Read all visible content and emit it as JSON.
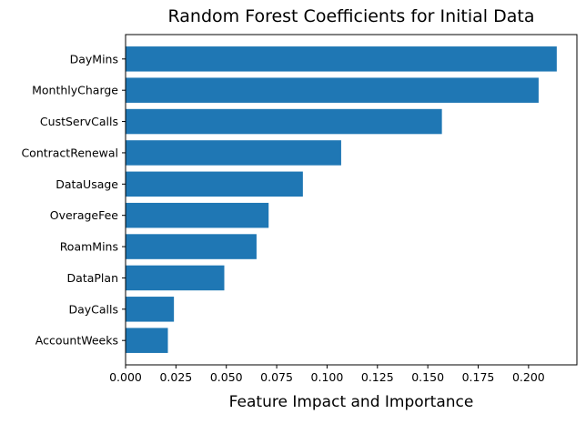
{
  "chart_data": {
    "type": "bar",
    "orientation": "horizontal",
    "title": "Random Forest Coefficients for Initial Data",
    "xlabel": "Feature Impact and Importance",
    "ylabel": "",
    "categories": [
      "DayMins",
      "MonthlyCharge",
      "CustServCalls",
      "ContractRenewal",
      "DataUsage",
      "OverageFee",
      "RoamMins",
      "DataPlan",
      "DayCalls",
      "AccountWeeks"
    ],
    "values": [
      0.214,
      0.205,
      0.157,
      0.107,
      0.088,
      0.071,
      0.065,
      0.049,
      0.024,
      0.021
    ],
    "xlim": [
      0.0,
      0.224
    ],
    "xticks": [
      "0.000",
      "0.025",
      "0.050",
      "0.075",
      "0.100",
      "0.125",
      "0.150",
      "0.175",
      "0.200"
    ],
    "grid": false,
    "legend": "none",
    "bar_color": "#1f77b4"
  }
}
